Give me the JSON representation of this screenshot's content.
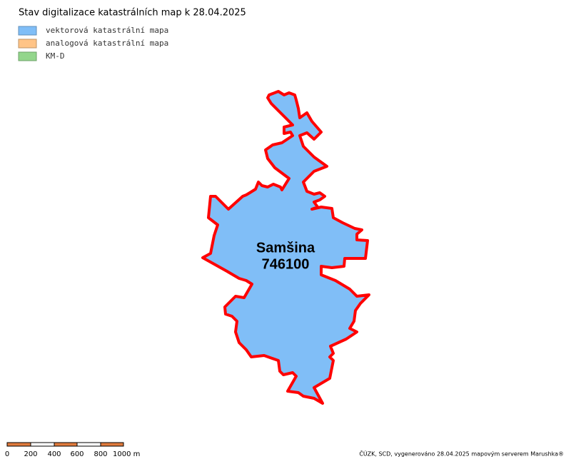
{
  "title": "Stav digitalizace katastrálních map k 28.04.2025",
  "legend": [
    {
      "label": "vektorová katastrální mapa",
      "color": "#80bef7"
    },
    {
      "label": "analogová katastrální mapa",
      "color": "#ffc487"
    },
    {
      "label": "KM-D",
      "color": "#93d68c"
    }
  ],
  "area": {
    "name": "Samšina",
    "code": "746100"
  },
  "scale_bar": [
    "0",
    "200",
    "400",
    "600",
    "800",
    "1000 m"
  ],
  "credit": "ČÚZK, SCD, vygenerováno 28.04.2025 mapovým serverem Marushka®"
}
